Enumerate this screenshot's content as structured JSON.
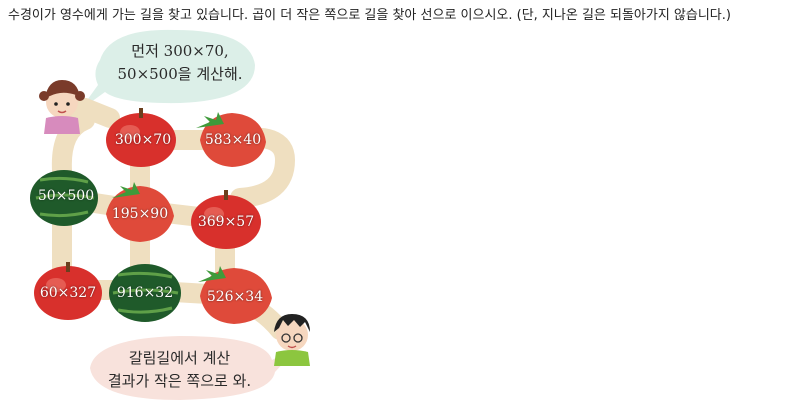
{
  "instruction": "수경이가 영수에게 가는 길을 찾고 있습니다. 곱이 더 작은 쪽으로 길을 찾아 선으로 이으시오. (단, 지나온 길은 되돌아가지 않습니다.)",
  "speech_top": {
    "line1": "먼저 300×70,",
    "line2": "50×500을 계산해."
  },
  "speech_bottom": {
    "line1": "갈림길에서 계산",
    "line2": "결과가 작은 쪽으로 와."
  },
  "fruits": {
    "apple_300x70": "300×70",
    "strawberry_583x40": "583×40",
    "watermelon_50x500": "50×500",
    "strawberry_195x90": "195×90",
    "apple_369x57": "369×57",
    "apple_60x327": "60×327",
    "watermelon_916x32": "916×32",
    "strawberry_526x34": "526×34"
  },
  "colors": {
    "path": "#efdfc0",
    "bubble": "#dcefe8",
    "bubble_bottom": "#f8e2dc",
    "apple": "#d8302c",
    "strawberry": "#df4a3a",
    "watermelon": "#1f5a2a"
  }
}
